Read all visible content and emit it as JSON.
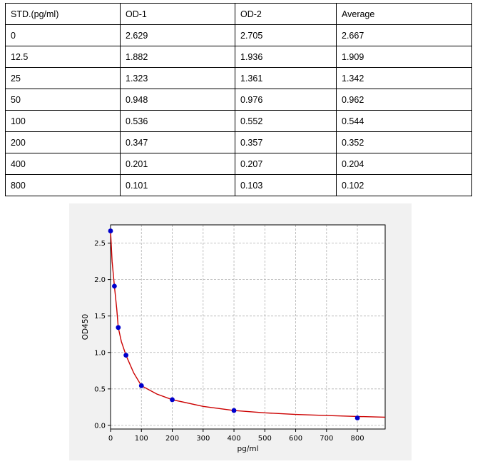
{
  "table": {
    "headers": [
      "STD.(pg/ml)",
      "OD-1",
      "OD-2",
      "Average"
    ],
    "rows": [
      [
        "0",
        "2.629",
        "2.705",
        "2.667"
      ],
      [
        "12.5",
        "1.882",
        "1.936",
        "1.909"
      ],
      [
        "25",
        "1.323",
        "1.361",
        "1.342"
      ],
      [
        "50",
        "0.948",
        "0.976",
        "0.962"
      ],
      [
        "100",
        "0.536",
        "0.552",
        "0.544"
      ],
      [
        "200",
        "0.347",
        "0.357",
        "0.352"
      ],
      [
        "400",
        "0.201",
        "0.207",
        "0.204"
      ],
      [
        "800",
        "0.101",
        "0.103",
        "0.102"
      ]
    ]
  },
  "chart_data": {
    "type": "scatter",
    "xlabel": "pg/ml",
    "ylabel": "OD450",
    "xlim": [
      0,
      890
    ],
    "ylim": [
      -0.05,
      2.75
    ],
    "x_ticks": [
      0,
      100,
      200,
      300,
      400,
      500,
      600,
      700,
      800
    ],
    "y_ticks": [
      0.0,
      0.5,
      1.0,
      1.5,
      2.0,
      2.5
    ],
    "grid": true,
    "points": {
      "x": [
        0,
        12.5,
        25,
        50,
        100,
        200,
        400,
        800
      ],
      "y": [
        2.667,
        1.909,
        1.342,
        0.962,
        0.544,
        0.352,
        0.204,
        0.102
      ]
    },
    "fit_curve": {
      "x": [
        0,
        5,
        12.5,
        20,
        25,
        35,
        50,
        75,
        100,
        150,
        200,
        300,
        400,
        500,
        600,
        700,
        800,
        890
      ],
      "y": [
        2.667,
        2.25,
        1.909,
        1.6,
        1.342,
        1.15,
        0.962,
        0.72,
        0.544,
        0.43,
        0.352,
        0.26,
        0.204,
        0.172,
        0.15,
        0.135,
        0.122,
        0.112
      ]
    },
    "colors": {
      "points": "#0000cc",
      "curve": "#cc0000",
      "grid": "#b0b0b0"
    }
  }
}
